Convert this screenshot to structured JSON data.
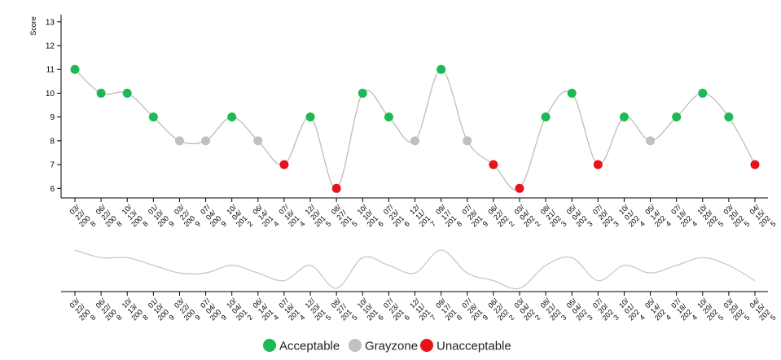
{
  "chart_data": {
    "type": "scatter",
    "ylabel": "Score",
    "ylim": [
      5.6,
      13.3
    ],
    "yticks": [
      6,
      7,
      8,
      9,
      10,
      11,
      12,
      13
    ],
    "grid": false,
    "legend_position": "bottom-center",
    "categories": [
      "Acceptable",
      "Grayzone",
      "Unacceptable"
    ],
    "category_colors": {
      "Acceptable": "#1db954",
      "Grayzone": "#c0c0c0",
      "Unacceptable": "#e8131a"
    },
    "x_labels": [
      [
        "03/",
        "22/",
        "200",
        "8"
      ],
      [
        "06/",
        "22/",
        "200",
        "8"
      ],
      [
        "10/",
        "13/",
        "200",
        "8"
      ],
      [
        "01/",
        "10/",
        "200",
        "9"
      ],
      [
        "03/",
        "22/",
        "200",
        "9"
      ],
      [
        "07/",
        "04/",
        "200",
        "9"
      ],
      [
        "10/",
        "04/",
        "201",
        "2"
      ],
      [
        "06/",
        "14/",
        "201",
        "4"
      ],
      [
        "07/",
        "16/",
        "201",
        "4"
      ],
      [
        "12/",
        "20/",
        "201",
        "5"
      ],
      [
        "08/",
        "27/",
        "201",
        "5"
      ],
      [
        "10/",
        "10/",
        "201",
        "6"
      ],
      [
        "07/",
        "23/",
        "201",
        "6"
      ],
      [
        "12/",
        "11/",
        "201",
        "7"
      ],
      [
        "09/",
        "17/",
        "201",
        "8"
      ],
      [
        "07/",
        "28/",
        "201",
        "9"
      ],
      [
        "06/",
        "22/",
        "202",
        "2"
      ],
      [
        "03/",
        "04/",
        "202",
        "2"
      ],
      [
        "08/",
        "21/",
        "202",
        "3"
      ],
      [
        "05/",
        "04/",
        "202",
        "3"
      ],
      [
        "07/",
        "20/",
        "202",
        "3"
      ],
      [
        "10/",
        "01/",
        "202",
        "4"
      ],
      [
        "05/",
        "14/",
        "202",
        "4"
      ],
      [
        "07/",
        "18/",
        "202",
        "4"
      ],
      [
        "10/",
        "20/",
        "202",
        "5"
      ],
      [
        "03/",
        "20/",
        "202",
        "5"
      ],
      [
        "04/",
        "15/",
        "202",
        "5"
      ]
    ],
    "points": [
      {
        "y": 11,
        "category": "Acceptable"
      },
      {
        "y": 10,
        "category": "Acceptable"
      },
      {
        "y": 10,
        "category": "Acceptable"
      },
      {
        "y": 9,
        "category": "Acceptable"
      },
      {
        "y": 8,
        "category": "Grayzone"
      },
      {
        "y": 8,
        "category": "Grayzone"
      },
      {
        "y": 9,
        "category": "Acceptable"
      },
      {
        "y": 8,
        "category": "Grayzone"
      },
      {
        "y": 7,
        "category": "Unacceptable"
      },
      {
        "y": 9,
        "category": "Acceptable"
      },
      {
        "y": 6,
        "category": "Unacceptable"
      },
      {
        "y": 10,
        "category": "Acceptable"
      },
      {
        "y": 9,
        "category": "Acceptable"
      },
      {
        "y": 8,
        "category": "Grayzone"
      },
      {
        "y": 11,
        "category": "Acceptable"
      },
      {
        "y": 8,
        "category": "Grayzone"
      },
      {
        "y": 7,
        "category": "Unacceptable"
      },
      {
        "y": 6,
        "category": "Unacceptable"
      },
      {
        "y": 9,
        "category": "Acceptable"
      },
      {
        "y": 10,
        "category": "Acceptable"
      },
      {
        "y": 7,
        "category": "Unacceptable"
      },
      {
        "y": 9,
        "category": "Acceptable"
      },
      {
        "y": 8,
        "category": "Grayzone"
      },
      {
        "y": 9,
        "category": "Acceptable"
      },
      {
        "y": 10,
        "category": "Acceptable"
      },
      {
        "y": 9,
        "category": "Acceptable"
      },
      {
        "y": 7,
        "category": "Unacceptable"
      }
    ]
  }
}
